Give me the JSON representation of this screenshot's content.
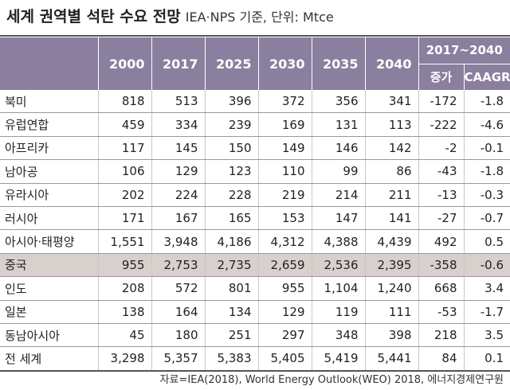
{
  "title": {
    "main": "세계 권역별 석탄 수요 전망",
    "sub": "IEA·NPS 기준, 단위: Mtce"
  },
  "header": {
    "years": [
      "2000",
      "2017",
      "2025",
      "2030",
      "2035",
      "2040"
    ],
    "range": "2017~2040",
    "sub": [
      "증가",
      "CAAGR"
    ]
  },
  "rows": [
    {
      "name": "북미",
      "values": [
        "818",
        "513",
        "396",
        "372",
        "356",
        "341",
        "-172",
        "-1.8"
      ]
    },
    {
      "name": "유럽연합",
      "values": [
        "459",
        "334",
        "239",
        "169",
        "131",
        "113",
        "-222",
        "-4.6"
      ]
    },
    {
      "name": "아프리카",
      "values": [
        "117",
        "145",
        "150",
        "149",
        "146",
        "142",
        "-2",
        "-0.1"
      ]
    },
    {
      "name": "남아공",
      "values": [
        "106",
        "129",
        "123",
        "110",
        "99",
        "86",
        "-43",
        "-1.8"
      ]
    },
    {
      "name": "유라시아",
      "values": [
        "202",
        "224",
        "228",
        "219",
        "214",
        "211",
        "-13",
        "-0.3"
      ]
    },
    {
      "name": "러시아",
      "values": [
        "171",
        "167",
        "165",
        "153",
        "147",
        "141",
        "-27",
        "-0.7"
      ]
    },
    {
      "name": "아시아·태평양",
      "values": [
        "1,551",
        "3,948",
        "4,186",
        "4,312",
        "4,388",
        "4,439",
        "492",
        "0.5"
      ]
    },
    {
      "name": "중국",
      "values": [
        "955",
        "2,753",
        "2,735",
        "2,659",
        "2,536",
        "2,395",
        "-358",
        "-0.6"
      ],
      "highlight": true
    },
    {
      "name": "인도",
      "values": [
        "208",
        "572",
        "801",
        "955",
        "1,104",
        "1,240",
        "668",
        "3.4"
      ]
    },
    {
      "name": "일본",
      "values": [
        "138",
        "164",
        "134",
        "129",
        "119",
        "111",
        "-53",
        "-1.7"
      ]
    },
    {
      "name": "동남아시아",
      "values": [
        "45",
        "180",
        "251",
        "297",
        "348",
        "398",
        "218",
        "3.5"
      ]
    },
    {
      "name": "전 세계",
      "values": [
        "3,298",
        "5,357",
        "5,383",
        "5,405",
        "5,419",
        "5,441",
        "84",
        "0.1"
      ]
    }
  ],
  "source": "자료=IEA(2018), World Energy Outlook(WEO) 2018, 에너지경제연구원",
  "colors": {
    "header_bg": "#8a7f9e",
    "highlight_row": "#d8d0cc"
  }
}
